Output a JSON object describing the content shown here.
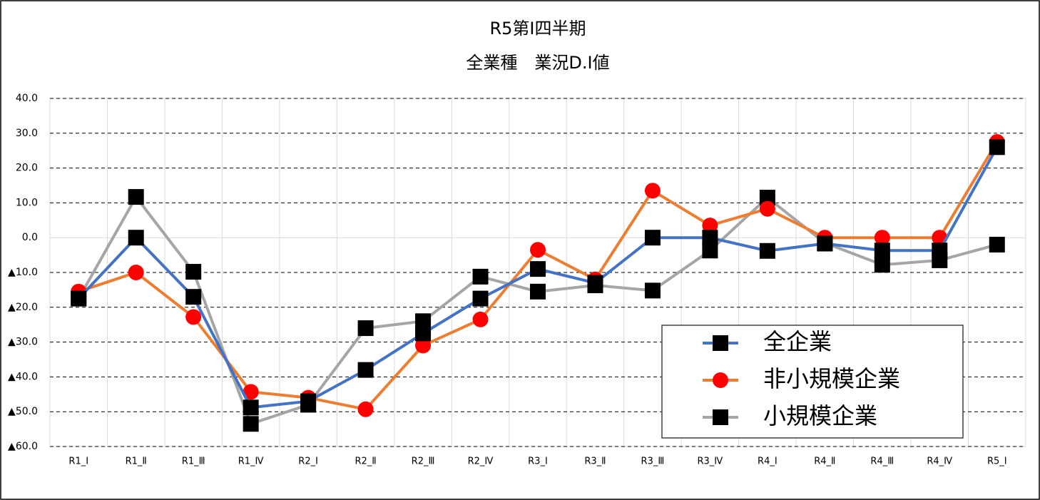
{
  "chart_data": {
    "type": "line",
    "title": "R5第Ⅰ四半期",
    "subtitle": "全業種　業況D.I値",
    "categories": [
      "R1_Ⅰ",
      "R1_Ⅱ",
      "R1_Ⅲ",
      "R1_Ⅳ",
      "R2_Ⅰ",
      "R2_Ⅱ",
      "R2_Ⅲ",
      "R2_Ⅳ",
      "R3_Ⅰ",
      "R3_Ⅱ",
      "R3_Ⅲ",
      "R3_Ⅳ",
      "R4_Ⅰ",
      "R4_Ⅱ",
      "R4_Ⅲ",
      "R4_Ⅳ",
      "R5_Ⅰ"
    ],
    "series": [
      {
        "name": "全企業",
        "color": "#4472c4",
        "marker": "square",
        "marker_color": "#000000",
        "values": [
          -17.5,
          0,
          -17,
          -48.8,
          -47,
          -38,
          -27.5,
          -17.5,
          -9,
          -13,
          0,
          0,
          -3.8,
          -1.7,
          -3.7,
          -3.7,
          26
        ]
      },
      {
        "name": "非小規模企業",
        "color": "#ed7d31",
        "marker": "circle",
        "marker_color": "#ff0000",
        "values": [
          -15.5,
          -10,
          -22.8,
          -44.3,
          -46,
          -49.3,
          -31,
          -23.5,
          -3.5,
          -12,
          13.5,
          3.5,
          8.3,
          0,
          0,
          0,
          27.5
        ]
      },
      {
        "name": "小規模企業",
        "color": "#a5a5a5",
        "marker": "square",
        "marker_color": "#000000",
        "values": [
          -17.5,
          11.7,
          -9.8,
          -53.5,
          -48,
          -26,
          -24,
          -11.2,
          -15.5,
          -13.7,
          -15.2,
          -3.7,
          11.5,
          -1.5,
          -7.8,
          -6.5,
          -2
        ]
      }
    ],
    "ylim": [
      -60,
      40
    ],
    "yticks": [
      {
        "value": 40,
        "label": "40.0"
      },
      {
        "value": 30,
        "label": "30.0"
      },
      {
        "value": 20,
        "label": "20.0"
      },
      {
        "value": 10,
        "label": "10.0"
      },
      {
        "value": 0,
        "label": "0.0"
      },
      {
        "value": -10,
        "label": "▲10.0"
      },
      {
        "value": -20,
        "label": "▲20.0"
      },
      {
        "value": -30,
        "label": "▲30.0"
      },
      {
        "value": -40,
        "label": "▲40.0"
      },
      {
        "value": -50,
        "label": "▲50.0"
      },
      {
        "value": -60,
        "label": "▲60.0"
      }
    ],
    "grid": true,
    "legend": "lower right"
  }
}
